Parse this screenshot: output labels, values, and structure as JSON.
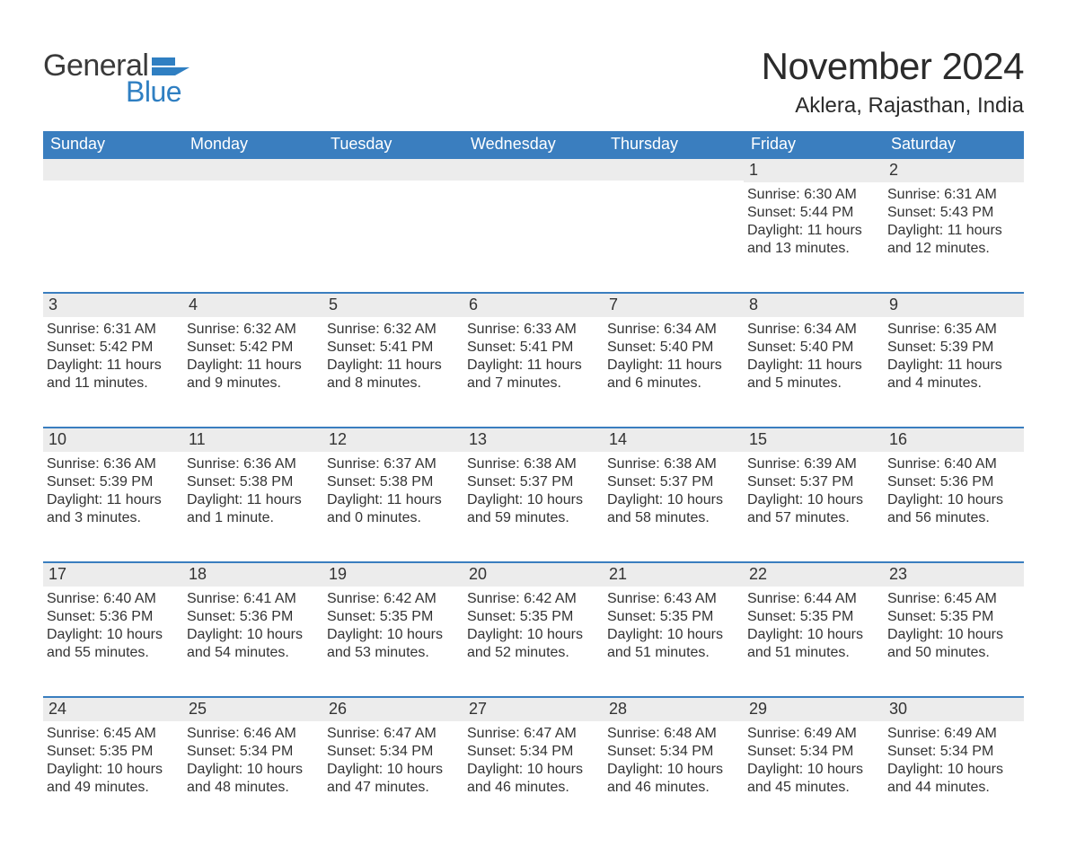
{
  "brand": {
    "word1": "General",
    "word2": "Blue",
    "text_color": "#3a3a3a",
    "accent_color": "#2f7fc2"
  },
  "header": {
    "title": "November 2024",
    "location": "Aklera, Rajasthan, India",
    "title_fontsize": 42,
    "location_fontsize": 24
  },
  "calendar": {
    "type": "table",
    "header_bg": "#3a7ebf",
    "header_text_color": "#ffffff",
    "daybar_bg": "#ececec",
    "daybar_border_color": "#3a7ebf",
    "body_text_color": "#333333",
    "columns": [
      "Sunday",
      "Monday",
      "Tuesday",
      "Wednesday",
      "Thursday",
      "Friday",
      "Saturday"
    ],
    "weeks": [
      [
        {
          "blank": true
        },
        {
          "blank": true
        },
        {
          "blank": true
        },
        {
          "blank": true
        },
        {
          "blank": true
        },
        {
          "day": "1",
          "sunrise": "Sunrise: 6:30 AM",
          "sunset": "Sunset: 5:44 PM",
          "d1": "Daylight: 11 hours",
          "d2": "and 13 minutes."
        },
        {
          "day": "2",
          "sunrise": "Sunrise: 6:31 AM",
          "sunset": "Sunset: 5:43 PM",
          "d1": "Daylight: 11 hours",
          "d2": "and 12 minutes."
        }
      ],
      [
        {
          "day": "3",
          "sunrise": "Sunrise: 6:31 AM",
          "sunset": "Sunset: 5:42 PM",
          "d1": "Daylight: 11 hours",
          "d2": "and 11 minutes."
        },
        {
          "day": "4",
          "sunrise": "Sunrise: 6:32 AM",
          "sunset": "Sunset: 5:42 PM",
          "d1": "Daylight: 11 hours",
          "d2": "and 9 minutes."
        },
        {
          "day": "5",
          "sunrise": "Sunrise: 6:32 AM",
          "sunset": "Sunset: 5:41 PM",
          "d1": "Daylight: 11 hours",
          "d2": "and 8 minutes."
        },
        {
          "day": "6",
          "sunrise": "Sunrise: 6:33 AM",
          "sunset": "Sunset: 5:41 PM",
          "d1": "Daylight: 11 hours",
          "d2": "and 7 minutes."
        },
        {
          "day": "7",
          "sunrise": "Sunrise: 6:34 AM",
          "sunset": "Sunset: 5:40 PM",
          "d1": "Daylight: 11 hours",
          "d2": "and 6 minutes."
        },
        {
          "day": "8",
          "sunrise": "Sunrise: 6:34 AM",
          "sunset": "Sunset: 5:40 PM",
          "d1": "Daylight: 11 hours",
          "d2": "and 5 minutes."
        },
        {
          "day": "9",
          "sunrise": "Sunrise: 6:35 AM",
          "sunset": "Sunset: 5:39 PM",
          "d1": "Daylight: 11 hours",
          "d2": "and 4 minutes."
        }
      ],
      [
        {
          "day": "10",
          "sunrise": "Sunrise: 6:36 AM",
          "sunset": "Sunset: 5:39 PM",
          "d1": "Daylight: 11 hours",
          "d2": "and 3 minutes."
        },
        {
          "day": "11",
          "sunrise": "Sunrise: 6:36 AM",
          "sunset": "Sunset: 5:38 PM",
          "d1": "Daylight: 11 hours",
          "d2": "and 1 minute."
        },
        {
          "day": "12",
          "sunrise": "Sunrise: 6:37 AM",
          "sunset": "Sunset: 5:38 PM",
          "d1": "Daylight: 11 hours",
          "d2": "and 0 minutes."
        },
        {
          "day": "13",
          "sunrise": "Sunrise: 6:38 AM",
          "sunset": "Sunset: 5:37 PM",
          "d1": "Daylight: 10 hours",
          "d2": "and 59 minutes."
        },
        {
          "day": "14",
          "sunrise": "Sunrise: 6:38 AM",
          "sunset": "Sunset: 5:37 PM",
          "d1": "Daylight: 10 hours",
          "d2": "and 58 minutes."
        },
        {
          "day": "15",
          "sunrise": "Sunrise: 6:39 AM",
          "sunset": "Sunset: 5:37 PM",
          "d1": "Daylight: 10 hours",
          "d2": "and 57 minutes."
        },
        {
          "day": "16",
          "sunrise": "Sunrise: 6:40 AM",
          "sunset": "Sunset: 5:36 PM",
          "d1": "Daylight: 10 hours",
          "d2": "and 56 minutes."
        }
      ],
      [
        {
          "day": "17",
          "sunrise": "Sunrise: 6:40 AM",
          "sunset": "Sunset: 5:36 PM",
          "d1": "Daylight: 10 hours",
          "d2": "and 55 minutes."
        },
        {
          "day": "18",
          "sunrise": "Sunrise: 6:41 AM",
          "sunset": "Sunset: 5:36 PM",
          "d1": "Daylight: 10 hours",
          "d2": "and 54 minutes."
        },
        {
          "day": "19",
          "sunrise": "Sunrise: 6:42 AM",
          "sunset": "Sunset: 5:35 PM",
          "d1": "Daylight: 10 hours",
          "d2": "and 53 minutes."
        },
        {
          "day": "20",
          "sunrise": "Sunrise: 6:42 AM",
          "sunset": "Sunset: 5:35 PM",
          "d1": "Daylight: 10 hours",
          "d2": "and 52 minutes."
        },
        {
          "day": "21",
          "sunrise": "Sunrise: 6:43 AM",
          "sunset": "Sunset: 5:35 PM",
          "d1": "Daylight: 10 hours",
          "d2": "and 51 minutes."
        },
        {
          "day": "22",
          "sunrise": "Sunrise: 6:44 AM",
          "sunset": "Sunset: 5:35 PM",
          "d1": "Daylight: 10 hours",
          "d2": "and 51 minutes."
        },
        {
          "day": "23",
          "sunrise": "Sunrise: 6:45 AM",
          "sunset": "Sunset: 5:35 PM",
          "d1": "Daylight: 10 hours",
          "d2": "and 50 minutes."
        }
      ],
      [
        {
          "day": "24",
          "sunrise": "Sunrise: 6:45 AM",
          "sunset": "Sunset: 5:35 PM",
          "d1": "Daylight: 10 hours",
          "d2": "and 49 minutes."
        },
        {
          "day": "25",
          "sunrise": "Sunrise: 6:46 AM",
          "sunset": "Sunset: 5:34 PM",
          "d1": "Daylight: 10 hours",
          "d2": "and 48 minutes."
        },
        {
          "day": "26",
          "sunrise": "Sunrise: 6:47 AM",
          "sunset": "Sunset: 5:34 PM",
          "d1": "Daylight: 10 hours",
          "d2": "and 47 minutes."
        },
        {
          "day": "27",
          "sunrise": "Sunrise: 6:47 AM",
          "sunset": "Sunset: 5:34 PM",
          "d1": "Daylight: 10 hours",
          "d2": "and 46 minutes."
        },
        {
          "day": "28",
          "sunrise": "Sunrise: 6:48 AM",
          "sunset": "Sunset: 5:34 PM",
          "d1": "Daylight: 10 hours",
          "d2": "and 46 minutes."
        },
        {
          "day": "29",
          "sunrise": "Sunrise: 6:49 AM",
          "sunset": "Sunset: 5:34 PM",
          "d1": "Daylight: 10 hours",
          "d2": "and 45 minutes."
        },
        {
          "day": "30",
          "sunrise": "Sunrise: 6:49 AM",
          "sunset": "Sunset: 5:34 PM",
          "d1": "Daylight: 10 hours",
          "d2": "and 44 minutes."
        }
      ]
    ]
  }
}
